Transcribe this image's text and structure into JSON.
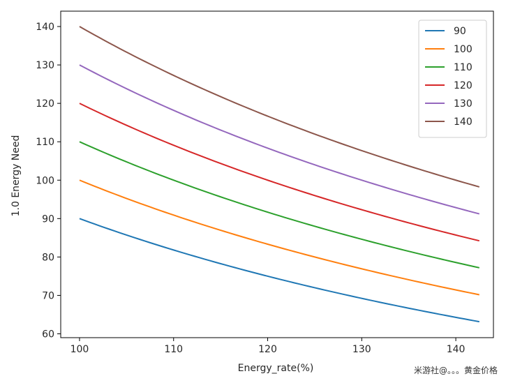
{
  "chart_data": {
    "type": "line",
    "title": "",
    "xlabel": "Energy_rate(%)",
    "ylabel": "1.0 Energy Need",
    "xlim": [
      98,
      144
    ],
    "ylim": [
      59,
      144
    ],
    "x_ticks": [
      100,
      110,
      120,
      130,
      140
    ],
    "y_ticks": [
      60,
      70,
      80,
      90,
      100,
      110,
      120,
      130,
      140
    ],
    "grid": false,
    "legend_position": "top-right",
    "x_start": 100,
    "x_end": 142.5,
    "series": [
      {
        "name": "90",
        "color": "#1f77b4",
        "values_at_start": 90,
        "values_at_end": 63.2
      },
      {
        "name": "100",
        "color": "#ff7f0e",
        "values_at_start": 100,
        "values_at_end": 70.2
      },
      {
        "name": "110",
        "color": "#2ca02c",
        "values_at_start": 110,
        "values_at_end": 77.2
      },
      {
        "name": "120",
        "color": "#d62728",
        "values_at_start": 120,
        "values_at_end": 84.2
      },
      {
        "name": "130",
        "color": "#9467bd",
        "values_at_start": 130,
        "values_at_end": 91.2
      },
      {
        "name": "140",
        "color": "#8c564b",
        "values_at_start": 140,
        "values_at_end": 98.2
      }
    ]
  },
  "watermark": "米游社@。。。黄金价格"
}
